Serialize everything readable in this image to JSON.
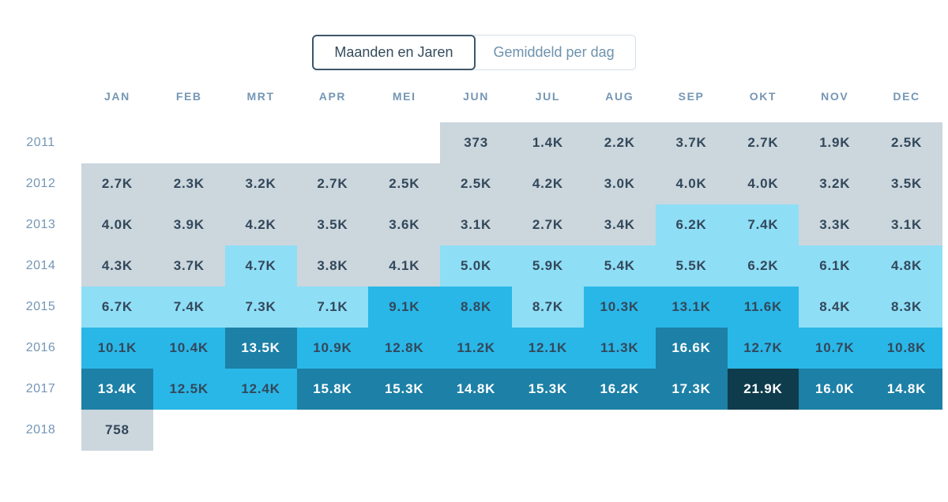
{
  "toggle": {
    "options": [
      {
        "label": "Maanden en Jaren",
        "active": true
      },
      {
        "label": "Gemiddeld per dag",
        "active": false
      }
    ]
  },
  "colors": {
    "toggle_active_text": "#344b5c",
    "toggle_active_border": "#3d566b",
    "toggle_inactive_text": "#6d92ae",
    "toggle_inactive_border": "#d4e0ea",
    "axis_label": "#7496b5"
  },
  "chart_data": {
    "type": "heatmap",
    "title": "",
    "columns": [
      "JAN",
      "FEB",
      "MRT",
      "APR",
      "MEI",
      "JUN",
      "JUL",
      "AUG",
      "SEP",
      "OKT",
      "NOV",
      "DEC"
    ],
    "palette": {
      "0": "transparent",
      "1": "#cbd6dd",
      "2": "#8edef6",
      "3": "#29b7e8",
      "4": "#1d80a6",
      "5": "#0f3c4c",
      "text_dark": "#33485a",
      "text_light": "#ffffff"
    },
    "rows": [
      {
        "year": "2011",
        "values": [
          "",
          "",
          "",
          "",
          "",
          "373",
          "1.4K",
          "2.2K",
          "3.7K",
          "2.7K",
          "1.9K",
          "2.5K"
        ],
        "levels": [
          0,
          0,
          0,
          0,
          0,
          1,
          1,
          1,
          1,
          1,
          1,
          1
        ]
      },
      {
        "year": "2012",
        "values": [
          "2.7K",
          "2.3K",
          "3.2K",
          "2.7K",
          "2.5K",
          "2.5K",
          "4.2K",
          "3.0K",
          "4.0K",
          "4.0K",
          "3.2K",
          "3.5K"
        ],
        "levels": [
          1,
          1,
          1,
          1,
          1,
          1,
          1,
          1,
          1,
          1,
          1,
          1
        ]
      },
      {
        "year": "2013",
        "values": [
          "4.0K",
          "3.9K",
          "4.2K",
          "3.5K",
          "3.6K",
          "3.1K",
          "2.7K",
          "3.4K",
          "6.2K",
          "7.4K",
          "3.3K",
          "3.1K"
        ],
        "levels": [
          1,
          1,
          1,
          1,
          1,
          1,
          1,
          1,
          2,
          2,
          1,
          1
        ]
      },
      {
        "year": "2014",
        "values": [
          "4.3K",
          "3.7K",
          "4.7K",
          "3.8K",
          "4.1K",
          "5.0K",
          "5.9K",
          "5.4K",
          "5.5K",
          "6.2K",
          "6.1K",
          "4.8K"
        ],
        "levels": [
          1,
          1,
          2,
          1,
          1,
          2,
          2,
          2,
          2,
          2,
          2,
          2
        ]
      },
      {
        "year": "2015",
        "values": [
          "6.7K",
          "7.4K",
          "7.3K",
          "7.1K",
          "9.1K",
          "8.8K",
          "8.7K",
          "10.3K",
          "13.1K",
          "11.6K",
          "8.4K",
          "8.3K"
        ],
        "levels": [
          2,
          2,
          2,
          2,
          3,
          3,
          2,
          3,
          3,
          3,
          2,
          2
        ]
      },
      {
        "year": "2016",
        "values": [
          "10.1K",
          "10.4K",
          "13.5K",
          "10.9K",
          "12.8K",
          "11.2K",
          "12.1K",
          "11.3K",
          "16.6K",
          "12.7K",
          "10.7K",
          "10.8K"
        ],
        "levels": [
          3,
          3,
          4,
          3,
          3,
          3,
          3,
          3,
          4,
          3,
          3,
          3
        ]
      },
      {
        "year": "2017",
        "values": [
          "13.4K",
          "12.5K",
          "12.4K",
          "15.8K",
          "15.3K",
          "14.8K",
          "15.3K",
          "16.2K",
          "17.3K",
          "21.9K",
          "16.0K",
          "14.8K"
        ],
        "levels": [
          4,
          3,
          3,
          4,
          4,
          4,
          4,
          4,
          4,
          5,
          4,
          4
        ]
      },
      {
        "year": "2018",
        "values": [
          "758",
          "",
          "",
          "",
          "",
          "",
          "",
          "",
          "",
          "",
          "",
          ""
        ],
        "levels": [
          1,
          0,
          0,
          0,
          0,
          0,
          0,
          0,
          0,
          0,
          0,
          0
        ]
      }
    ]
  }
}
